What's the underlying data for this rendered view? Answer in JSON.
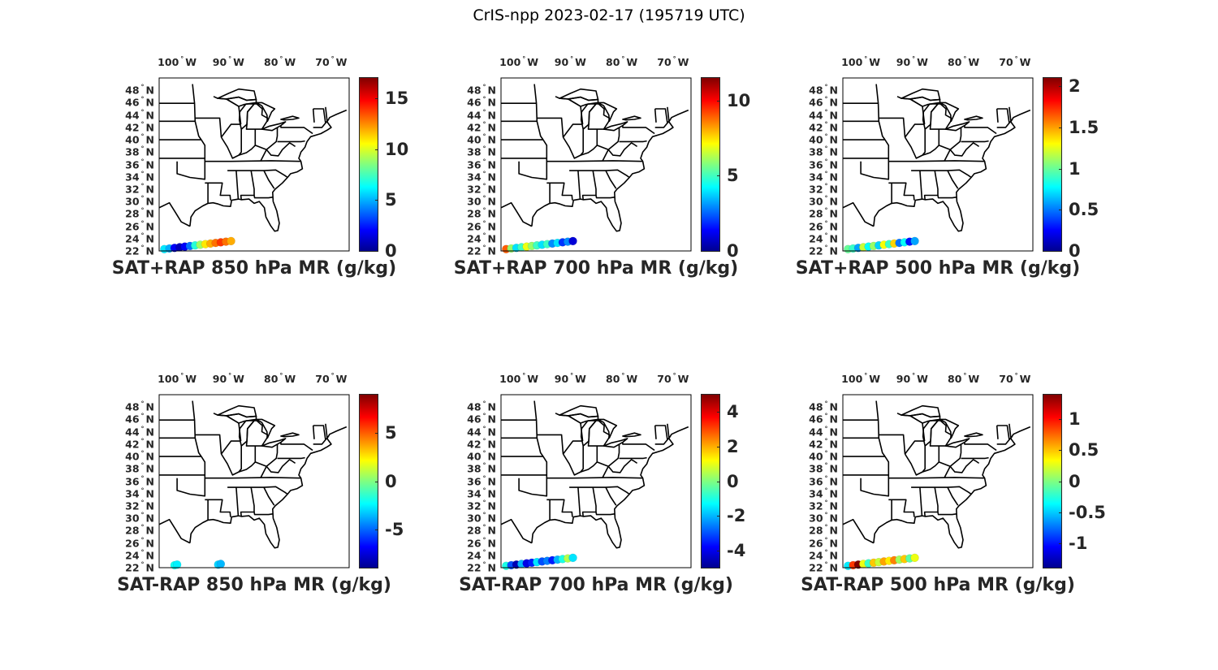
{
  "figure": {
    "title": "CrIS-npp 2023-02-17 (195719 UTC)"
  },
  "map_axes": {
    "lon_labels": [
      "100",
      "90",
      "80",
      "70"
    ],
    "lon_suffix": "W",
    "lat_labels": [
      "48",
      "46",
      "44",
      "42",
      "40",
      "38",
      "36",
      "34",
      "32",
      "30",
      "28",
      "26",
      "24",
      "22"
    ],
    "lat_suffix": "N",
    "deg_symbol": "°"
  },
  "chart_data": [
    {
      "type": "scatter",
      "title": "SAT+RAP 850 hPa MR (g/kg)",
      "colorbar": {
        "ticks": [
          "0",
          "5",
          "10",
          "15"
        ],
        "range": [
          0,
          17
        ]
      },
      "points": [
        {
          "lon": -102.5,
          "lat": 22.3,
          "v": 6
        },
        {
          "lon": -101.5,
          "lat": 22.4,
          "v": 5
        },
        {
          "lon": -100.5,
          "lat": 22.5,
          "v": 2
        },
        {
          "lon": -99.5,
          "lat": 22.6,
          "v": 1
        },
        {
          "lon": -98.5,
          "lat": 22.7,
          "v": 2
        },
        {
          "lon": -97.5,
          "lat": 22.8,
          "v": 4
        },
        {
          "lon": -96.5,
          "lat": 22.9,
          "v": 7
        },
        {
          "lon": -95.5,
          "lat": 23.0,
          "v": 9
        },
        {
          "lon": -94.5,
          "lat": 23.1,
          "v": 11
        },
        {
          "lon": -93.5,
          "lat": 23.2,
          "v": 12
        },
        {
          "lon": -92.5,
          "lat": 23.3,
          "v": 13
        },
        {
          "lon": -91.5,
          "lat": 23.4,
          "v": 14
        },
        {
          "lon": -90.5,
          "lat": 23.5,
          "v": 13
        },
        {
          "lon": -89.5,
          "lat": 23.6,
          "v": 12
        }
      ]
    },
    {
      "type": "scatter",
      "title": "SAT+RAP 700 hPa MR (g/kg)",
      "colorbar": {
        "ticks": [
          "0",
          "5",
          "10"
        ],
        "range": [
          0,
          11.5
        ]
      },
      "points": [
        {
          "lon": -102.5,
          "lat": 22.3,
          "v": 9
        },
        {
          "lon": -101.5,
          "lat": 22.4,
          "v": 6
        },
        {
          "lon": -100.5,
          "lat": 22.5,
          "v": 4
        },
        {
          "lon": -99.5,
          "lat": 22.6,
          "v": 5
        },
        {
          "lon": -98.5,
          "lat": 22.7,
          "v": 7
        },
        {
          "lon": -97.5,
          "lat": 22.8,
          "v": 6
        },
        {
          "lon": -96.5,
          "lat": 22.9,
          "v": 5
        },
        {
          "lon": -95.5,
          "lat": 23.0,
          "v": 4
        },
        {
          "lon": -94.5,
          "lat": 23.1,
          "v": 5
        },
        {
          "lon": -93.5,
          "lat": 23.2,
          "v": 3
        },
        {
          "lon": -92.5,
          "lat": 23.3,
          "v": 4
        },
        {
          "lon": -91.5,
          "lat": 23.4,
          "v": 2
        },
        {
          "lon": -90.5,
          "lat": 23.5,
          "v": 3
        },
        {
          "lon": -89.5,
          "lat": 23.6,
          "v": 1
        }
      ]
    },
    {
      "type": "scatter",
      "title": "SAT+RAP 500 hPa MR (g/kg)",
      "colorbar": {
        "ticks": [
          "0",
          "0.5",
          "1",
          "1.5",
          "2"
        ],
        "range": [
          0,
          2.1
        ]
      },
      "points": [
        {
          "lon": -102.5,
          "lat": 22.3,
          "v": 1.0
        },
        {
          "lon": -101.5,
          "lat": 22.4,
          "v": 0.9
        },
        {
          "lon": -100.5,
          "lat": 22.5,
          "v": 0.6
        },
        {
          "lon": -99.5,
          "lat": 22.6,
          "v": 1.2
        },
        {
          "lon": -98.5,
          "lat": 22.7,
          "v": 0.8
        },
        {
          "lon": -97.5,
          "lat": 22.8,
          "v": 1.1
        },
        {
          "lon": -96.5,
          "lat": 22.9,
          "v": 0.7
        },
        {
          "lon": -95.5,
          "lat": 23.0,
          "v": 1.3
        },
        {
          "lon": -94.5,
          "lat": 23.1,
          "v": 0.9
        },
        {
          "lon": -93.5,
          "lat": 23.2,
          "v": 1.4
        },
        {
          "lon": -92.5,
          "lat": 23.3,
          "v": 0.5
        },
        {
          "lon": -91.5,
          "lat": 23.4,
          "v": 0.8
        },
        {
          "lon": -90.5,
          "lat": 23.5,
          "v": 0.3
        },
        {
          "lon": -89.5,
          "lat": 23.6,
          "v": 0.6
        }
      ]
    },
    {
      "type": "scatter",
      "title": "SAT-RAP 850 hPa MR (g/kg)",
      "colorbar": {
        "ticks": [
          "-5",
          "0",
          "5"
        ],
        "range": [
          -9,
          9
        ]
      },
      "points": [
        {
          "lon": -100.5,
          "lat": 22.4,
          "v": -2
        },
        {
          "lon": -100.0,
          "lat": 22.5,
          "v": -2.5
        },
        {
          "lon": -92.0,
          "lat": 22.5,
          "v": -3
        },
        {
          "lon": -91.5,
          "lat": 22.6,
          "v": -3.5
        }
      ]
    },
    {
      "type": "scatter",
      "title": "SAT-RAP 700 hPa MR (g/kg)",
      "colorbar": {
        "ticks": [
          "-4",
          "-2",
          "0",
          "2",
          "4"
        ],
        "range": [
          -5,
          5
        ]
      },
      "points": [
        {
          "lon": -102.5,
          "lat": 22.3,
          "v": -1
        },
        {
          "lon": -101.5,
          "lat": 22.4,
          "v": -3
        },
        {
          "lon": -100.5,
          "lat": 22.5,
          "v": -4.5
        },
        {
          "lon": -99.5,
          "lat": 22.6,
          "v": -2
        },
        {
          "lon": -98.5,
          "lat": 22.7,
          "v": -4
        },
        {
          "lon": -97.5,
          "lat": 22.8,
          "v": -3.5
        },
        {
          "lon": -96.5,
          "lat": 22.9,
          "v": -1.5
        },
        {
          "lon": -95.5,
          "lat": 23.0,
          "v": -3
        },
        {
          "lon": -94.5,
          "lat": 23.1,
          "v": -2.5
        },
        {
          "lon": -93.5,
          "lat": 23.2,
          "v": -3.5
        },
        {
          "lon": -92.5,
          "lat": 23.3,
          "v": -2
        },
        {
          "lon": -91.5,
          "lat": 23.4,
          "v": -1
        },
        {
          "lon": -90.5,
          "lat": 23.5,
          "v": 0.5
        },
        {
          "lon": -89.5,
          "lat": 23.6,
          "v": -1.5
        }
      ]
    },
    {
      "type": "scatter",
      "title": "SAT-RAP 500 hPa MR (g/kg)",
      "colorbar": {
        "ticks": [
          "-1",
          "-0.5",
          "0",
          "0.5",
          "1"
        ],
        "range": [
          -1.4,
          1.4
        ]
      },
      "points": [
        {
          "lon": -102.5,
          "lat": 22.3,
          "v": -0.4
        },
        {
          "lon": -101.5,
          "lat": 22.4,
          "v": 0.9
        },
        {
          "lon": -100.5,
          "lat": 22.5,
          "v": 1.4
        },
        {
          "lon": -99.5,
          "lat": 22.6,
          "v": 0.3
        },
        {
          "lon": -98.5,
          "lat": 22.7,
          "v": -0.2
        },
        {
          "lon": -97.5,
          "lat": 22.8,
          "v": 0.5
        },
        {
          "lon": -96.5,
          "lat": 22.9,
          "v": 0.2
        },
        {
          "lon": -95.5,
          "lat": 23.0,
          "v": 0.6
        },
        {
          "lon": -94.5,
          "lat": 23.1,
          "v": 0.4
        },
        {
          "lon": -93.5,
          "lat": 23.2,
          "v": 0.7
        },
        {
          "lon": -92.5,
          "lat": 23.3,
          "v": 0.1
        },
        {
          "lon": -91.5,
          "lat": 23.4,
          "v": 0.5
        },
        {
          "lon": -90.5,
          "lat": 23.5,
          "v": -0.1
        },
        {
          "lon": -89.5,
          "lat": 23.6,
          "v": 0.3
        }
      ]
    }
  ]
}
